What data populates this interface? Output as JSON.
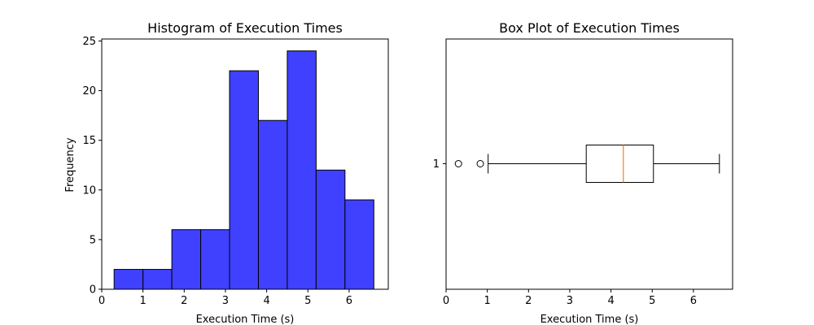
{
  "chart_data": [
    {
      "type": "bar",
      "subtype": "histogram",
      "title": "Histogram of Execution Times",
      "xlabel": "Execution Time (s)",
      "ylabel": "Frequency",
      "bin_edges": [
        0.3,
        1.0,
        1.7,
        2.4,
        3.1,
        3.8,
        4.5,
        5.2,
        5.9,
        6.6
      ],
      "values": [
        2,
        2,
        6,
        6,
        22,
        17,
        24,
        12,
        9
      ],
      "xlim": [
        0,
        6.95
      ],
      "ylim": [
        0,
        25.2
      ],
      "xticks": [
        0,
        1,
        2,
        3,
        4,
        5,
        6
      ],
      "yticks": [
        0,
        5,
        10,
        15,
        20,
        25
      ],
      "bar_color": "#4040ff",
      "edge_color": "#000000",
      "grid": false,
      "legend": "none"
    },
    {
      "type": "box",
      "orientation": "horizontal",
      "title": "Box Plot of Execution Times",
      "xlabel": "Execution Time (s)",
      "category_labels": [
        "1"
      ],
      "stats": {
        "whisker_low": 1.02,
        "q1": 3.4,
        "median": 4.3,
        "q3": 5.03,
        "whisker_high": 6.63,
        "outliers": [
          0.3,
          0.83
        ]
      },
      "xlim": [
        0,
        6.95
      ],
      "xticks": [
        0,
        1,
        2,
        3,
        4,
        5,
        6
      ],
      "median_color": "#ff7f0e",
      "grid": false,
      "legend": "none"
    }
  ]
}
